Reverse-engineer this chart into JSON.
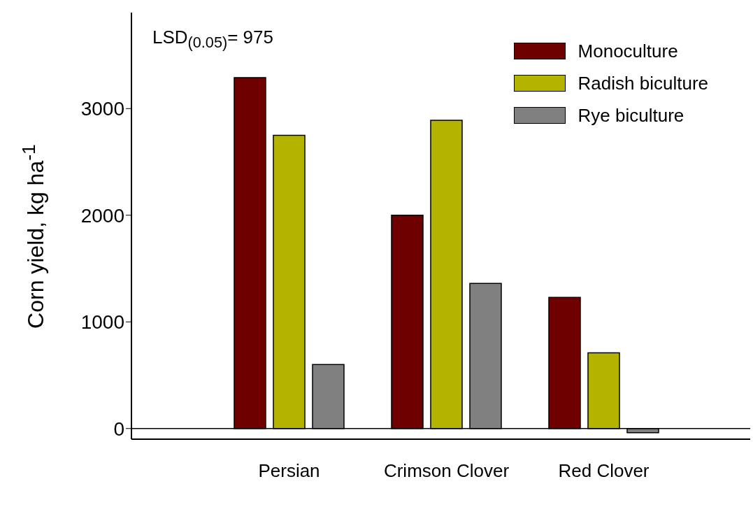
{
  "chart_data": {
    "type": "bar",
    "categories": [
      "Persian",
      "Crimson Clover",
      "Red Clover"
    ],
    "series": [
      {
        "name": "Monoculture",
        "color": "#6e0000",
        "values": [
          3290,
          2000,
          1230
        ]
      },
      {
        "name": "Radish biculture",
        "color": "#b4b400",
        "values": [
          2750,
          2890,
          710
        ]
      },
      {
        "name": "Rye biculture",
        "color": "#808080",
        "values": [
          600,
          1360,
          -40
        ]
      }
    ],
    "ylabel": "Corn yield, kg ha$^{-1}$",
    "annotations": [
      "LSD$_{(0.05)}$= 975"
    ],
    "ylim": [
      -100,
      3900
    ],
    "yticks": [
      0,
      1000,
      2000,
      3000
    ],
    "ref_lines": [
      {
        "axis": "y",
        "value": 0
      }
    ],
    "grid": false,
    "legend": "top right"
  }
}
